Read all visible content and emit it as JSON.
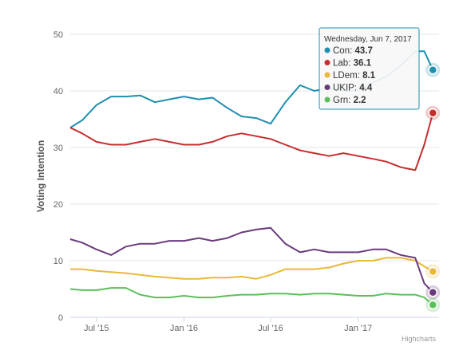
{
  "chart_data": {
    "type": "line",
    "ylabel": "Voting Intention",
    "ylim": [
      0,
      50
    ],
    "yticks": [
      "0",
      "10",
      "20",
      "30",
      "40",
      "50"
    ],
    "xticks": [
      {
        "label": "Jul '15",
        "date": "2015-07-01"
      },
      {
        "label": "Jan '16",
        "date": "2016-01-01"
      },
      {
        "label": "Jul '16",
        "date": "2016-07-01"
      },
      {
        "label": "Jan '17",
        "date": "2017-01-01"
      }
    ],
    "xlim": [
      "2015-05-07",
      "2017-06-20"
    ],
    "grid": true,
    "credit": "Highcharts",
    "series": [
      {
        "name": "Con",
        "color": "#1f8fb0",
        "x": [
          "2015-05-07",
          "2015-06-01",
          "2015-07-01",
          "2015-08-01",
          "2015-09-01",
          "2015-10-01",
          "2015-11-01",
          "2015-12-01",
          "2016-01-01",
          "2016-02-01",
          "2016-03-01",
          "2016-04-01",
          "2016-05-01",
          "2016-06-01",
          "2016-07-01",
          "2016-08-01",
          "2016-09-01",
          "2016-10-01",
          "2016-11-01",
          "2016-12-01",
          "2017-01-01",
          "2017-02-01",
          "2017-03-01",
          "2017-04-01",
          "2017-05-01",
          "2017-05-20",
          "2017-06-07"
        ],
        "values": [
          33.5,
          34.8,
          37.5,
          39,
          39,
          39.2,
          38,
          38.5,
          39,
          38.5,
          38.8,
          37,
          35.5,
          35.2,
          34.2,
          38,
          41,
          40,
          40.5,
          40,
          40,
          41.5,
          42.5,
          44.5,
          47,
          47,
          43.7
        ]
      },
      {
        "name": "Lab",
        "color": "#c62d2d",
        "x": [
          "2015-05-07",
          "2015-06-01",
          "2015-07-01",
          "2015-08-01",
          "2015-09-01",
          "2015-10-01",
          "2015-11-01",
          "2015-12-01",
          "2016-01-01",
          "2016-02-01",
          "2016-03-01",
          "2016-04-01",
          "2016-05-01",
          "2016-06-01",
          "2016-07-01",
          "2016-08-01",
          "2016-09-01",
          "2016-10-01",
          "2016-11-01",
          "2016-12-01",
          "2017-01-01",
          "2017-02-01",
          "2017-03-01",
          "2017-04-01",
          "2017-05-01",
          "2017-05-20",
          "2017-06-07"
        ],
        "values": [
          33.5,
          32.5,
          31,
          30.5,
          30.5,
          31,
          31.5,
          31,
          30.5,
          30.5,
          31,
          32,
          32.5,
          32,
          31.5,
          30.5,
          29.5,
          29,
          28.5,
          29,
          28.5,
          28,
          27.5,
          26.5,
          26,
          30.5,
          36.1
        ]
      },
      {
        "name": "LDem",
        "color": "#e8b83a",
        "x": [
          "2015-05-07",
          "2015-06-01",
          "2015-07-01",
          "2015-08-01",
          "2015-09-01",
          "2015-10-01",
          "2015-11-01",
          "2015-12-01",
          "2016-01-01",
          "2016-02-01",
          "2016-03-01",
          "2016-04-01",
          "2016-05-01",
          "2016-06-01",
          "2016-07-01",
          "2016-08-01",
          "2016-09-01",
          "2016-10-01",
          "2016-11-01",
          "2016-12-01",
          "2017-01-01",
          "2017-02-01",
          "2017-03-01",
          "2017-04-01",
          "2017-05-01",
          "2017-05-20",
          "2017-06-07"
        ],
        "values": [
          8.5,
          8.5,
          8.2,
          8,
          7.8,
          7.5,
          7.2,
          7,
          6.8,
          6.8,
          7,
          7,
          7.2,
          6.8,
          7.5,
          8.5,
          8.5,
          8.5,
          8.8,
          9.5,
          10,
          10,
          10.5,
          10.5,
          10,
          9,
          8.1
        ]
      },
      {
        "name": "UKIP",
        "color": "#6a3b7c",
        "x": [
          "2015-05-07",
          "2015-06-01",
          "2015-07-01",
          "2015-08-01",
          "2015-09-01",
          "2015-10-01",
          "2015-11-01",
          "2015-12-01",
          "2016-01-01",
          "2016-02-01",
          "2016-03-01",
          "2016-04-01",
          "2016-05-01",
          "2016-06-01",
          "2016-07-01",
          "2016-08-01",
          "2016-09-01",
          "2016-10-01",
          "2016-11-01",
          "2016-12-01",
          "2017-01-01",
          "2017-02-01",
          "2017-03-01",
          "2017-04-01",
          "2017-05-01",
          "2017-05-20",
          "2017-06-07"
        ],
        "values": [
          13.8,
          13.2,
          12,
          11,
          12.5,
          13,
          13,
          13.5,
          13.5,
          14,
          13.5,
          14,
          15,
          15.5,
          15.8,
          13,
          11.5,
          12,
          11.5,
          11.5,
          11.5,
          12,
          12,
          11,
          10.5,
          6,
          4.4
        ]
      },
      {
        "name": "Grn",
        "color": "#5bbf5b",
        "x": [
          "2015-05-07",
          "2015-06-01",
          "2015-07-01",
          "2015-08-01",
          "2015-09-01",
          "2015-10-01",
          "2015-11-01",
          "2015-12-01",
          "2016-01-01",
          "2016-02-01",
          "2016-03-01",
          "2016-04-01",
          "2016-05-01",
          "2016-06-01",
          "2016-07-01",
          "2016-08-01",
          "2016-09-01",
          "2016-10-01",
          "2016-11-01",
          "2016-12-01",
          "2017-01-01",
          "2017-02-01",
          "2017-03-01",
          "2017-04-01",
          "2017-05-01",
          "2017-05-20",
          "2017-06-07"
        ],
        "values": [
          5,
          4.8,
          4.8,
          5.2,
          5.2,
          4,
          3.5,
          3.5,
          3.8,
          3.5,
          3.5,
          3.8,
          4,
          4,
          4.2,
          4.2,
          4,
          4.2,
          4.2,
          4,
          3.8,
          3.8,
          4.2,
          4,
          4,
          3.5,
          2.2
        ]
      }
    ],
    "tooltip": {
      "date": "Wednesday, Jun 7, 2017",
      "rows": [
        {
          "name": "Con",
          "value": "43.7",
          "color": "#1f8fb0"
        },
        {
          "name": "Lab",
          "value": "36.1",
          "color": "#c62d2d"
        },
        {
          "name": "LDem",
          "value": "8.1",
          "color": "#e8b83a"
        },
        {
          "name": "UKIP",
          "value": "4.4",
          "color": "#6a3b7c"
        },
        {
          "name": "Grn",
          "value": "2.2",
          "color": "#5bbf5b"
        }
      ],
      "border_color": "#1f8fb0"
    }
  }
}
